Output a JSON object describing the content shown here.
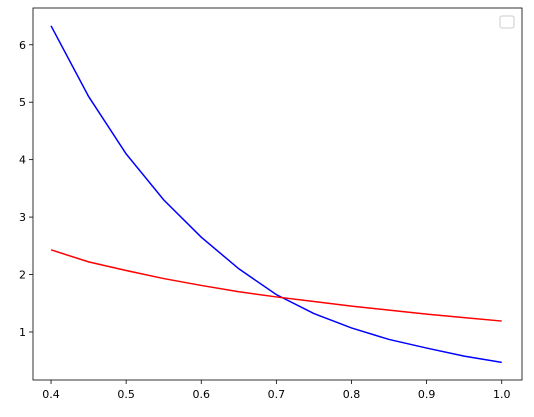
{
  "chart_data": {
    "type": "line",
    "x": [
      0.4,
      0.45,
      0.5,
      0.55,
      0.6,
      0.65,
      0.7,
      0.75,
      0.8,
      0.85,
      0.9,
      0.95,
      1.0
    ],
    "series": [
      {
        "color": "#0000ff",
        "values": [
          6.33,
          5.1,
          4.1,
          3.3,
          2.65,
          2.1,
          1.65,
          1.32,
          1.07,
          0.87,
          0.72,
          0.58,
          0.47
        ]
      },
      {
        "color": "#ff0000",
        "values": [
          2.43,
          2.22,
          2.07,
          1.93,
          1.81,
          1.7,
          1.61,
          1.53,
          1.45,
          1.38,
          1.31,
          1.25,
          1.19
        ]
      }
    ],
    "xlim": [
      0.376,
      1.027
    ],
    "xticks": [
      0.4,
      0.5,
      0.6,
      0.7,
      0.8,
      0.9,
      {
        "value": 1.0,
        "label": "1.0"
      }
    ],
    "ylim": [
      0.164,
      6.64
    ],
    "yticks": [
      1,
      2,
      3,
      4,
      5,
      6
    ],
    "legend": "upper right"
  }
}
